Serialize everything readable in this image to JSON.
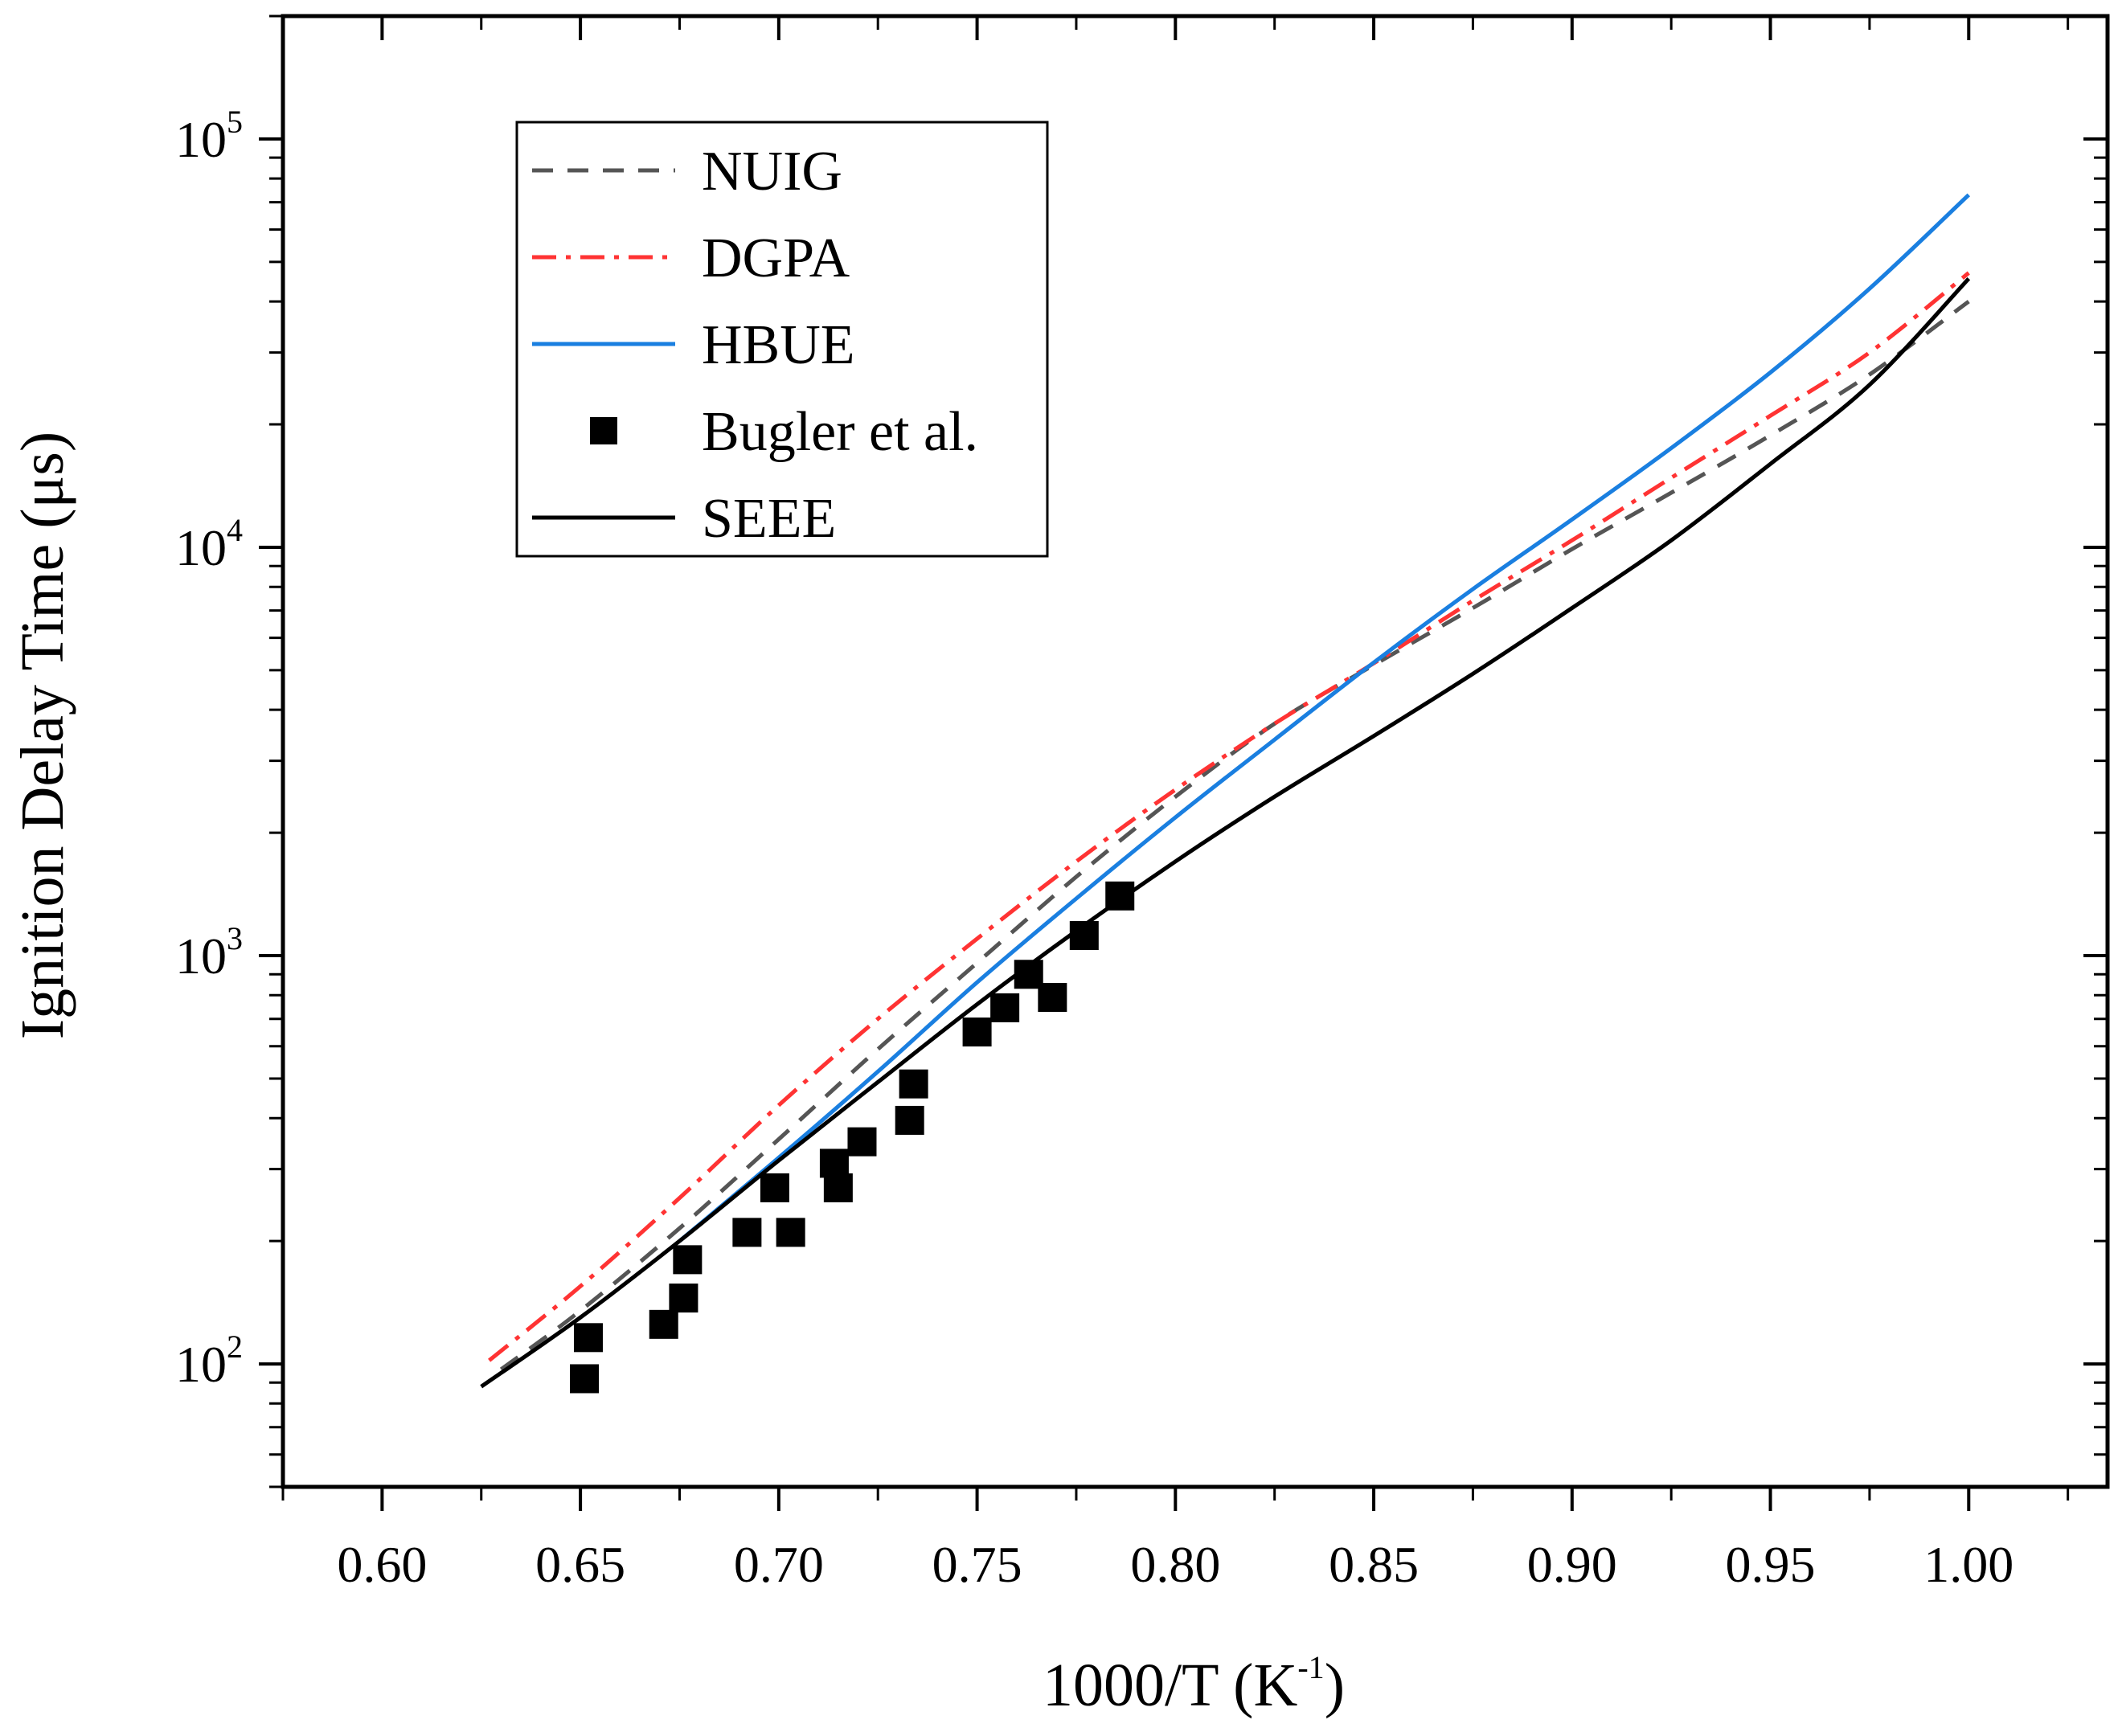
{
  "chart_data": {
    "type": "line",
    "title": "",
    "xlabel": {
      "main": "1000/T (K",
      "sup": "-1",
      "close": ")"
    },
    "ylabel": "Ignition Delay Time (μs)",
    "xlim": [
      0.575,
      1.035
    ],
    "ylim": [
      50,
      200000
    ],
    "yscale": "log",
    "xticks": [
      {
        "value": 0.6,
        "label": "0.60"
      },
      {
        "value": 0.65,
        "label": "0.65"
      },
      {
        "value": 0.7,
        "label": "0.70"
      },
      {
        "value": 0.75,
        "label": "0.75"
      },
      {
        "value": 0.8,
        "label": "0.80"
      },
      {
        "value": 0.85,
        "label": "0.85"
      },
      {
        "value": 0.9,
        "label": "0.90"
      },
      {
        "value": 0.95,
        "label": "0.95"
      },
      {
        "value": 1.0,
        "label": "1.00"
      }
    ],
    "yticks": [
      {
        "value": 100,
        "base": "10",
        "exp": "2"
      },
      {
        "value": 1000,
        "base": "10",
        "exp": "3"
      },
      {
        "value": 10000,
        "base": "10",
        "exp": "4"
      },
      {
        "value": 100000,
        "base": "10",
        "exp": "5"
      }
    ],
    "legend_position": "top-left",
    "series": [
      {
        "name": "NUIG",
        "kind": "line",
        "style": "dash",
        "color": "#555555",
        "x": [
          0.63,
          0.65,
          0.675,
          0.7,
          0.725,
          0.75,
          0.775,
          0.8,
          0.825,
          0.85,
          0.875,
          0.9,
          0.925,
          0.95,
          0.975,
          1.0
        ],
        "y": [
          97,
          135,
          215,
          355,
          590,
          960,
          1560,
          2450,
          3700,
          5150,
          7100,
          9900,
          13600,
          18800,
          26500,
          40000
        ]
      },
      {
        "name": "DGPA",
        "kind": "line",
        "style": "dashdot",
        "color": "#ff3333",
        "x": [
          0.627,
          0.65,
          0.675,
          0.7,
          0.725,
          0.75,
          0.775,
          0.8,
          0.825,
          0.85,
          0.875,
          0.9,
          0.925,
          0.95,
          0.975,
          1.0
        ],
        "y": [
          102,
          155,
          255,
          430,
          700,
          1100,
          1700,
          2550,
          3700,
          5200,
          7400,
          10400,
          14800,
          21000,
          30000,
          47000
        ]
      },
      {
        "name": "HBUE",
        "kind": "line",
        "style": "solid",
        "color": "#1a7fe0",
        "x": [
          0.675,
          0.7,
          0.725,
          0.75,
          0.775,
          0.8,
          0.825,
          0.85,
          0.875,
          0.9,
          0.925,
          0.95,
          0.975,
          1.0
        ],
        "y": [
          200,
          320,
          520,
          860,
          1380,
          2180,
          3380,
          5220,
          7900,
          11700,
          17500,
          26800,
          43000,
          73000
        ]
      },
      {
        "name": "Bugler et al.",
        "kind": "scatter",
        "marker": "square",
        "color": "#000000",
        "x": [
          0.651,
          0.652,
          0.671,
          0.676,
          0.677,
          0.692,
          0.699,
          0.703,
          0.714,
          0.715,
          0.721,
          0.733,
          0.734,
          0.75,
          0.757,
          0.763,
          0.769,
          0.777,
          0.786
        ],
        "y": [
          92,
          116,
          125,
          145,
          180,
          210,
          270,
          210,
          310,
          270,
          350,
          395,
          485,
          650,
          745,
          900,
          790,
          1120,
          1400
        ]
      },
      {
        "name": "SEEE",
        "kind": "line",
        "style": "solid",
        "color": "#000000",
        "x": [
          0.625,
          0.65,
          0.675,
          0.7,
          0.725,
          0.75,
          0.775,
          0.8,
          0.825,
          0.85,
          0.875,
          0.9,
          0.925,
          0.95,
          0.975,
          1.0
        ],
        "y": [
          88,
          130,
          200,
          315,
          490,
          760,
          1150,
          1700,
          2450,
          3450,
          4900,
          7100,
          10400,
          16000,
          25000,
          45500
        ]
      }
    ]
  }
}
